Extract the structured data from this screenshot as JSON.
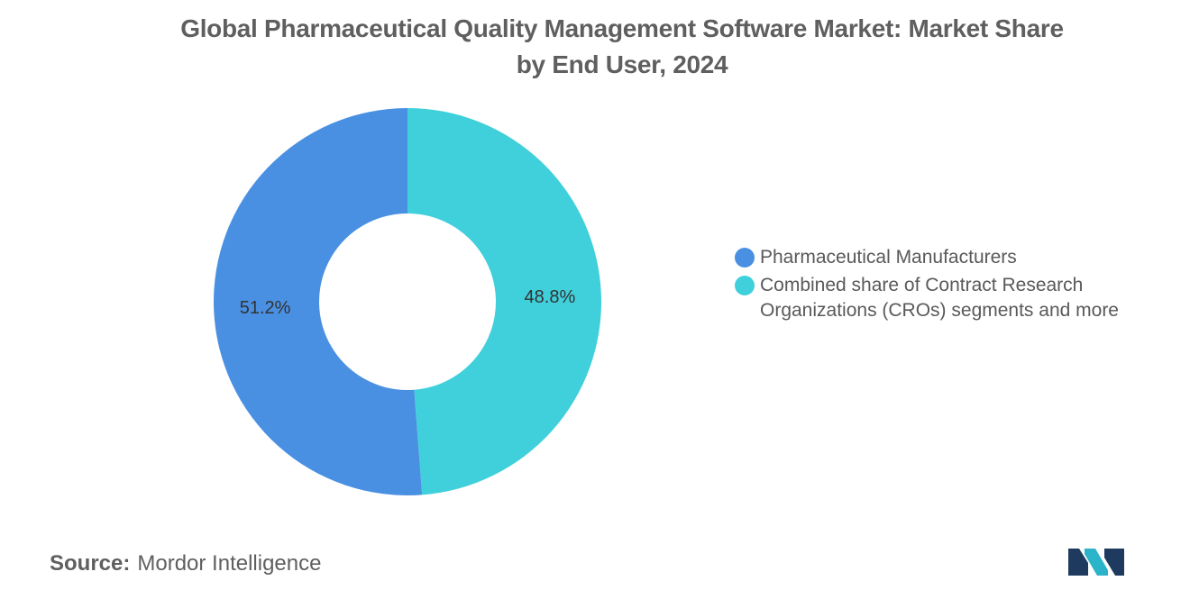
{
  "title_lines": [
    "Global Pharmaceutical Quality Management Software Market: Market Share",
    "by End User, 2024"
  ],
  "source": {
    "label": "Source:",
    "text": "Mordor Intelligence"
  },
  "logo": {
    "icon": "mordor-intelligence-logo",
    "colors": [
      "#1e3a5f",
      "#2bb3c9"
    ]
  },
  "chart_data": {
    "type": "pie",
    "donut": true,
    "title": "Global Pharmaceutical Quality Management Software Market: Market Share by End User, 2024",
    "legend_position": "right",
    "slices": [
      {
        "label": "Combined share of Contract Research Organizations (CROs) segments and more",
        "value": 48.8,
        "display": "48.8%",
        "color": "#40d0db"
      },
      {
        "label": "Pharmaceutical Manufacturers",
        "value": 51.2,
        "display": "51.2%",
        "color": "#4a90e2"
      }
    ],
    "legend": [
      {
        "label": "Pharmaceutical Manufacturers",
        "color": "#4a90e2"
      },
      {
        "label": "Combined share of Contract Research Organizations (CROs) segments and more",
        "color": "#40d0db"
      }
    ]
  }
}
